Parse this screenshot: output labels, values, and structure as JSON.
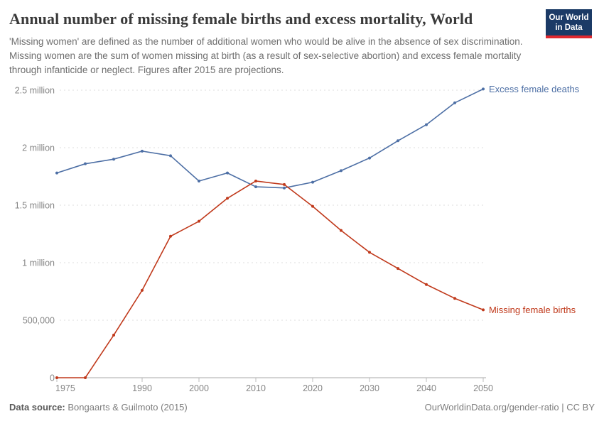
{
  "header": {
    "title": "Annual number of missing female births and excess mortality, World",
    "subtitle": "'Missing women' are defined as the number of additional women who would be alive in the absence of sex discrimination. Missing women are the sum of women missing at birth (as a result of sex-selective abortion) and excess female mortality through infanticide or neglect. Figures after 2015 are projections.",
    "logo": {
      "line1": "Our World",
      "line2": "in Data",
      "bg_color": "#1b3a66",
      "accent_color": "#e0282e"
    }
  },
  "chart_data": {
    "type": "line",
    "title": "Annual number of missing female births and excess mortality, World",
    "x": [
      1975,
      1980,
      1985,
      1990,
      1995,
      2000,
      2005,
      2010,
      2015,
      2020,
      2025,
      2030,
      2035,
      2040,
      2045,
      2050
    ],
    "series": [
      {
        "name": "Excess female deaths",
        "color": "#4d6fa5",
        "values": [
          1780000,
          1860000,
          1900000,
          1970000,
          1930000,
          1710000,
          1780000,
          1660000,
          1650000,
          1700000,
          1800000,
          1910000,
          2060000,
          2200000,
          2390000,
          2510000
        ]
      },
      {
        "name": "Missing female births",
        "color": "#c0391b",
        "values": [
          0,
          0,
          370000,
          760000,
          1230000,
          1360000,
          1560000,
          1710000,
          1680000,
          1490000,
          1280000,
          1090000,
          950000,
          810000,
          690000,
          590000
        ]
      }
    ],
    "yticks": [
      {
        "label": "0",
        "value": 0
      },
      {
        "label": "500,000",
        "value": 500000
      },
      {
        "label": "1 million",
        "value": 1000000
      },
      {
        "label": "1.5 million",
        "value": 1500000
      },
      {
        "label": "2 million",
        "value": 2000000
      },
      {
        "label": "2.5 million",
        "value": 2500000
      }
    ],
    "xticks": [
      {
        "label": "1975",
        "year": 1975
      },
      {
        "label": "1990",
        "year": 1990
      },
      {
        "label": "2000",
        "year": 2000
      },
      {
        "label": "2010",
        "year": 2010
      },
      {
        "label": "2020",
        "year": 2020
      },
      {
        "label": "2030",
        "year": 2030
      },
      {
        "label": "2040",
        "year": 2040
      },
      {
        "label": "2050",
        "year": 2050
      }
    ],
    "axis_range": {
      "x": [
        1975,
        2050
      ],
      "y": [
        0,
        2500000
      ]
    },
    "grid": "horizontal-dashed",
    "legend": "end-of-line-labels",
    "colors": {
      "gridline": "#dedede",
      "axis": "#a8a8a8",
      "tick": "#bcbcbc",
      "tick_label": "#858585"
    }
  },
  "footer": {
    "source_label": "Data source:",
    "source_text": " Bongaarts & Guilmoto (2015)",
    "link_text": "OurWorldinData.org/gender-ratio | CC BY"
  }
}
